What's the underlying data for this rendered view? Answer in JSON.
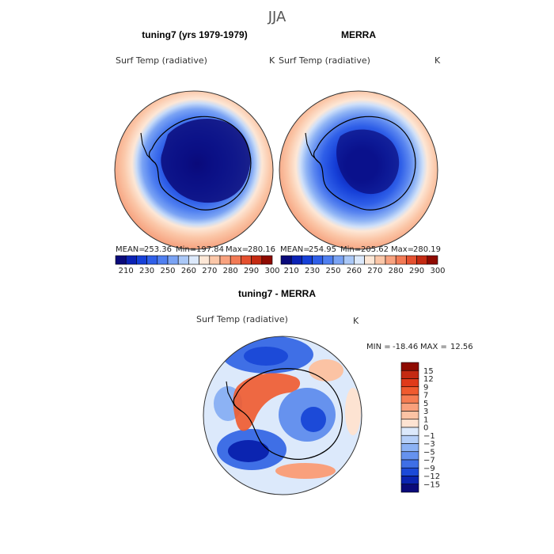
{
  "figure_title": "JJA",
  "chart_data": [
    {
      "type": "heatmap",
      "panel": "model",
      "title": "tuning7 (yrs 1979-1979)",
      "variable": "Surf Temp (radiative)",
      "units": "K",
      "stats": {
        "mean_label": "MEAN=",
        "mean": "253.36",
        "min_label": "Min=",
        "min": "197.84",
        "max_label": "Max=",
        "max": "280.16"
      },
      "colorbar": {
        "orientation": "horizontal",
        "tick_labels": [
          "210",
          "230",
          "250",
          "260",
          "270",
          "280",
          "290",
          "300"
        ],
        "colors": [
          "#0a0a7a",
          "#0b22b5",
          "#1640d8",
          "#2f5fe8",
          "#4f7ff0",
          "#7aa3f4",
          "#aac8f7",
          "#dce9fb",
          "#fde7d6",
          "#fbc7a8",
          "#f8a27f",
          "#f27a55",
          "#e4502f",
          "#c42a12",
          "#8e0a00"
        ]
      }
    },
    {
      "type": "heatmap",
      "panel": "observations",
      "title": "MERRA",
      "variable": "Surf Temp (radiative)",
      "units": "K",
      "stats": {
        "mean_label": "MEAN=",
        "mean": "254.95",
        "min_label": "Min=",
        "min": "205.62",
        "max_label": "Max=",
        "max": "280.19"
      },
      "colorbar": {
        "orientation": "horizontal",
        "tick_labels": [
          "210",
          "230",
          "250",
          "260",
          "270",
          "280",
          "290",
          "300"
        ],
        "colors": [
          "#0a0a7a",
          "#0b22b5",
          "#1640d8",
          "#2f5fe8",
          "#4f7ff0",
          "#7aa3f4",
          "#aac8f7",
          "#dce9fb",
          "#fde7d6",
          "#fbc7a8",
          "#f8a27f",
          "#f27a55",
          "#e4502f",
          "#c42a12",
          "#8e0a00"
        ]
      }
    },
    {
      "type": "heatmap",
      "panel": "difference",
      "title": "tuning7 - MERRA",
      "variable": "Surf Temp (radiative)",
      "units": "K",
      "stats": {
        "min_label": "MIN =",
        "min": "-18.46",
        "max_label": "MAX =",
        "max": "12.56"
      },
      "colorbar": {
        "orientation": "vertical",
        "tick_labels": [
          "15",
          "12",
          "9",
          "7",
          "5",
          "3",
          "1",
          "0",
          "−1",
          "−3",
          "−5",
          "−7",
          "−9",
          "−12",
          "−15"
        ],
        "colors": [
          "#8e0a00",
          "#c42a12",
          "#e03a1a",
          "#f05a2e",
          "#f67c52",
          "#f9a07c",
          "#fbc3a4",
          "#fde3d2",
          "#dce9fb",
          "#b5cff8",
          "#8cb2f4",
          "#6692ee",
          "#3f6fe6",
          "#1c4ad8",
          "#0b24b0",
          "#0a0a7a"
        ]
      }
    }
  ]
}
